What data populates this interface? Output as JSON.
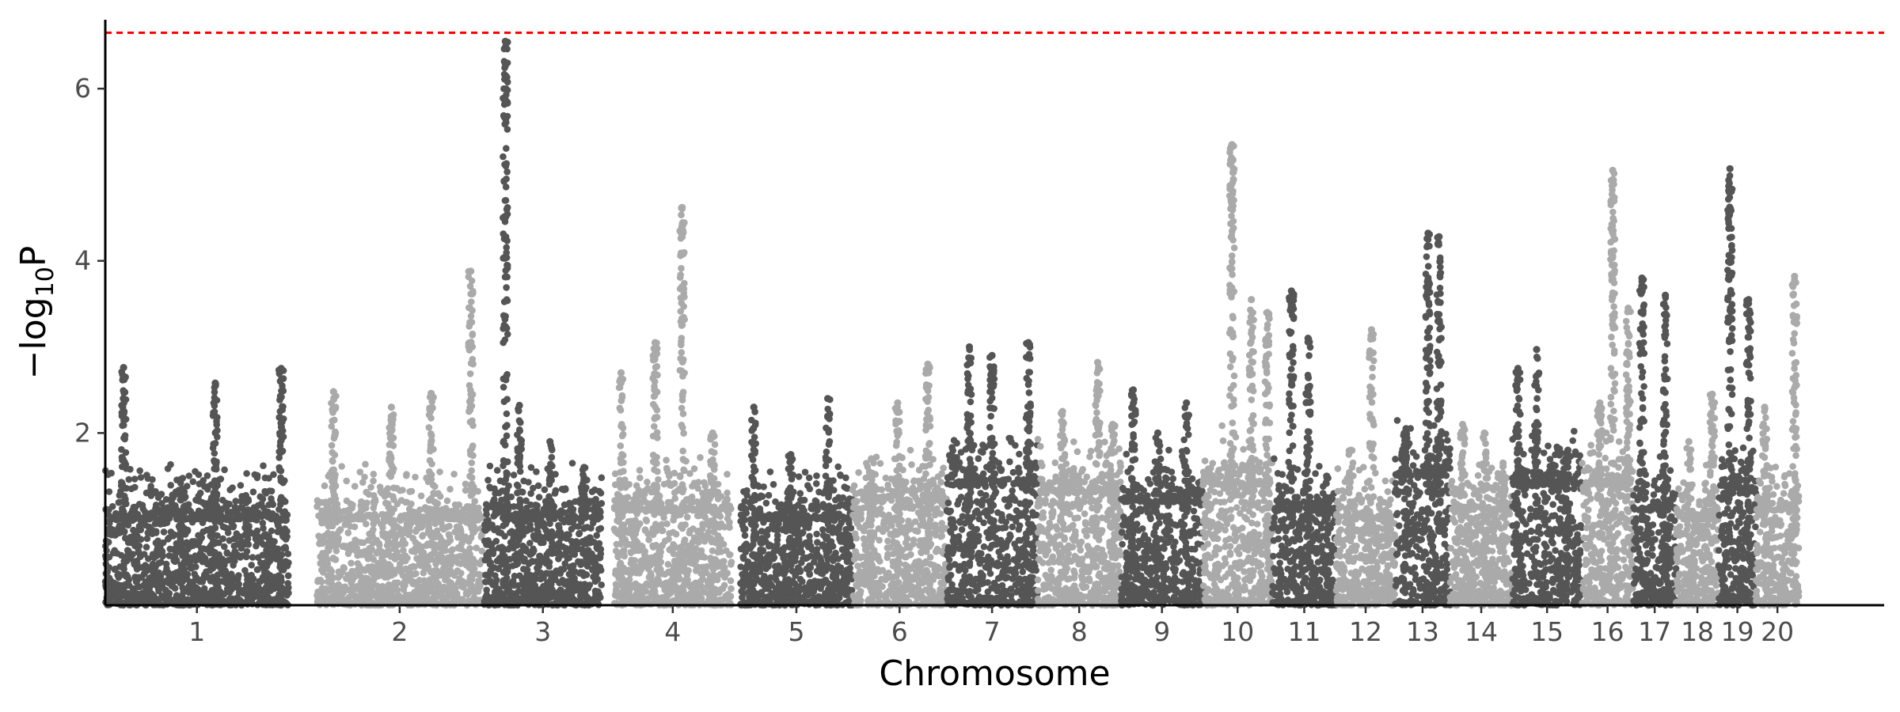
{
  "chart_data": {
    "type": "scatter",
    "subtype": "manhattan",
    "title": "",
    "xlabel": "Chromosome",
    "ylabel_prefix": "−log",
    "ylabel_sub": "10",
    "ylabel_suffix": "P",
    "ylim": [
      0,
      6.8
    ],
    "yticks": [
      2,
      4,
      6
    ],
    "threshold": 6.65,
    "threshold_color": "#ff0000",
    "colors": {
      "dark": "#555555",
      "light": "#aaaaaa"
    },
    "grid": false,
    "legend": "none",
    "chromosomes": [
      {
        "label": "1",
        "start": 0.0,
        "end": 0.103,
        "color": "dark",
        "bg": 1.0,
        "peaks": [
          {
            "x": 0.1,
            "y": 2.76
          },
          {
            "x": 0.42,
            "y": 1.35
          },
          {
            "x": 0.6,
            "y": 2.58
          },
          {
            "x": 0.96,
            "y": 2.75
          }
        ]
      },
      {
        "label": "2",
        "start": 0.119,
        "end": 0.212,
        "color": "light",
        "bg": 1.0,
        "peaks": [
          {
            "x": 0.1,
            "y": 2.48
          },
          {
            "x": 0.45,
            "y": 2.3
          },
          {
            "x": 0.69,
            "y": 2.46
          },
          {
            "x": 0.93,
            "y": 3.88
          }
        ]
      },
      {
        "label": "3",
        "start": 0.213,
        "end": 0.279,
        "color": "dark",
        "bg": 1.0,
        "peaks": [
          {
            "x": 0.18,
            "y": 6.55
          },
          {
            "x": 0.3,
            "y": 2.32
          },
          {
            "x": 0.56,
            "y": 1.9
          },
          {
            "x": 0.85,
            "y": 1.6
          }
        ]
      },
      {
        "label": "4",
        "start": 0.286,
        "end": 0.352,
        "color": "light",
        "bg": 1.1,
        "peaks": [
          {
            "x": 0.06,
            "y": 2.7
          },
          {
            "x": 0.35,
            "y": 3.05
          },
          {
            "x": 0.58,
            "y": 4.62
          },
          {
            "x": 0.84,
            "y": 2.0
          }
        ]
      },
      {
        "label": "5",
        "start": 0.357,
        "end": 0.42,
        "color": "dark",
        "bg": 1.0,
        "peaks": [
          {
            "x": 0.12,
            "y": 2.3
          },
          {
            "x": 0.45,
            "y": 1.75
          },
          {
            "x": 0.78,
            "y": 2.4
          },
          {
            "x": 0.96,
            "y": 1.2
          }
        ]
      },
      {
        "label": "6",
        "start": 0.42,
        "end": 0.473,
        "color": "light",
        "bg": 1.2,
        "peaks": [
          {
            "x": 0.2,
            "y": 1.7
          },
          {
            "x": 0.48,
            "y": 2.35
          },
          {
            "x": 0.8,
            "y": 2.8
          }
        ]
      },
      {
        "label": "7",
        "start": 0.473,
        "end": 0.524,
        "color": "dark",
        "bg": 1.4,
        "peaks": [
          {
            "x": 0.25,
            "y": 3.0
          },
          {
            "x": 0.5,
            "y": 2.9
          },
          {
            "x": 0.9,
            "y": 3.05
          }
        ]
      },
      {
        "label": "8",
        "start": 0.524,
        "end": 0.571,
        "color": "light",
        "bg": 1.3,
        "peaks": [
          {
            "x": 0.3,
            "y": 2.25
          },
          {
            "x": 0.72,
            "y": 2.82
          },
          {
            "x": 0.9,
            "y": 2.1
          }
        ]
      },
      {
        "label": "9",
        "start": 0.571,
        "end": 0.617,
        "color": "dark",
        "bg": 1.2,
        "peaks": [
          {
            "x": 0.15,
            "y": 2.5
          },
          {
            "x": 0.45,
            "y": 2.0
          },
          {
            "x": 0.8,
            "y": 2.35
          }
        ]
      },
      {
        "label": "10",
        "start": 0.617,
        "end": 0.656,
        "color": "light",
        "bg": 1.4,
        "peaks": [
          {
            "x": 0.42,
            "y": 5.35
          },
          {
            "x": 0.7,
            "y": 3.55
          },
          {
            "x": 0.93,
            "y": 3.4
          }
        ]
      },
      {
        "label": "11",
        "start": 0.656,
        "end": 0.692,
        "color": "dark",
        "bg": 1.1,
        "peaks": [
          {
            "x": 0.3,
            "y": 3.65
          },
          {
            "x": 0.56,
            "y": 3.1
          },
          {
            "x": 0.85,
            "y": 1.5
          }
        ]
      },
      {
        "label": "12",
        "start": 0.692,
        "end": 0.725,
        "color": "light",
        "bg": 1.0,
        "peaks": [
          {
            "x": 0.25,
            "y": 1.8
          },
          {
            "x": 0.6,
            "y": 3.2
          },
          {
            "x": 0.88,
            "y": 1.0
          }
        ]
      },
      {
        "label": "13",
        "start": 0.725,
        "end": 0.756,
        "color": "dark",
        "bg": 1.5,
        "peaks": [
          {
            "x": 0.2,
            "y": 2.05
          },
          {
            "x": 0.6,
            "y": 4.32
          },
          {
            "x": 0.8,
            "y": 4.28
          }
        ]
      },
      {
        "label": "14",
        "start": 0.756,
        "end": 0.791,
        "color": "light",
        "bg": 1.1,
        "peaks": [
          {
            "x": 0.2,
            "y": 2.1
          },
          {
            "x": 0.55,
            "y": 2.0
          },
          {
            "x": 0.85,
            "y": 1.65
          }
        ]
      },
      {
        "label": "15",
        "start": 0.791,
        "end": 0.83,
        "color": "dark",
        "bg": 1.4,
        "peaks": [
          {
            "x": 0.08,
            "y": 2.75
          },
          {
            "x": 0.35,
            "y": 2.97
          },
          {
            "x": 0.8,
            "y": 1.8
          }
        ]
      },
      {
        "label": "16",
        "start": 0.83,
        "end": 0.859,
        "color": "light",
        "bg": 1.4,
        "peaks": [
          {
            "x": 0.35,
            "y": 2.35
          },
          {
            "x": 0.6,
            "y": 5.05
          },
          {
            "x": 0.9,
            "y": 3.45
          }
        ]
      },
      {
        "label": "17",
        "start": 0.859,
        "end": 0.883,
        "color": "dark",
        "bg": 1.1,
        "peaks": [
          {
            "x": 0.2,
            "y": 3.8
          },
          {
            "x": 0.75,
            "y": 3.6
          }
        ]
      },
      {
        "label": "18",
        "start": 0.883,
        "end": 0.907,
        "color": "light",
        "bg": 1.0,
        "peaks": [
          {
            "x": 0.3,
            "y": 1.9
          },
          {
            "x": 0.85,
            "y": 2.45
          }
        ]
      },
      {
        "label": "19",
        "start": 0.907,
        "end": 0.928,
        "color": "dark",
        "bg": 1.3,
        "peaks": [
          {
            "x": 0.3,
            "y": 5.07
          },
          {
            "x": 0.8,
            "y": 3.55
          }
        ]
      },
      {
        "label": "20",
        "start": 0.928,
        "end": 0.952,
        "color": "light",
        "bg": 1.1,
        "peaks": [
          {
            "x": 0.2,
            "y": 2.3
          },
          {
            "x": 0.9,
            "y": 3.82
          }
        ]
      }
    ]
  }
}
